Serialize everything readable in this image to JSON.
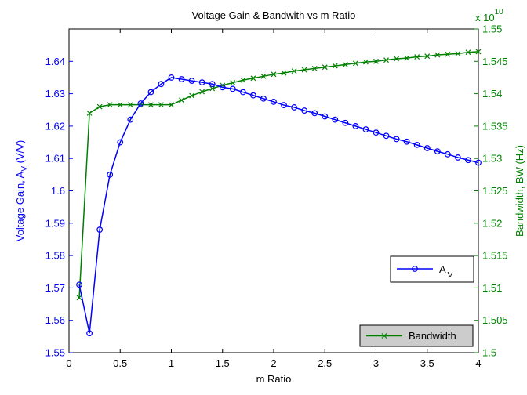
{
  "chart_data": {
    "type": "line",
    "title": "Voltage Gain & Bandwith vs m Ratio",
    "xlabel": "m Ratio",
    "ylabel_left": {
      "text": "Voltage Gain, A",
      "subscript": "V",
      "suffix": " (V/V)"
    },
    "ylabel_right": "Bandwidth, BW (Hz)",
    "right_axis_multiplier": {
      "base": "x 10",
      "exponent": "10"
    },
    "xlim": [
      0,
      4
    ],
    "ylim_left": [
      1.55,
      1.65
    ],
    "ylim_right": [
      1.5,
      1.55
    ],
    "xticks": [
      "0",
      "0.5",
      "1",
      "1.5",
      "2",
      "2.5",
      "3",
      "3.5",
      "4"
    ],
    "yticks_left": [
      "1.55",
      "1.56",
      "1.57",
      "1.58",
      "1.59",
      "1.6",
      "1.61",
      "1.62",
      "1.63",
      "1.64"
    ],
    "yticks_right": [
      "1.5",
      "1.505",
      "1.51",
      "1.515",
      "1.52",
      "1.525",
      "1.53",
      "1.535",
      "1.54",
      "1.545",
      "1.55"
    ],
    "grid": false,
    "colors": {
      "gain": "#0000ff",
      "bandwidth": "#008000",
      "axis": "#000000"
    },
    "series": [
      {
        "name": "A",
        "name_subscript": "V",
        "axis": "left",
        "marker": "circle",
        "x": [
          0.1,
          0.2,
          0.3,
          0.4,
          0.5,
          0.6,
          0.7,
          0.8,
          0.9,
          1.0,
          1.1,
          1.2,
          1.3,
          1.4,
          1.5,
          1.6,
          1.7,
          1.8,
          1.9,
          2.0,
          2.1,
          2.2,
          2.3,
          2.4,
          2.5,
          2.6,
          2.7,
          2.8,
          2.9,
          3.0,
          3.1,
          3.2,
          3.3,
          3.4,
          3.5,
          3.6,
          3.7,
          3.8,
          3.9,
          4.0
        ],
        "values": [
          1.571,
          1.556,
          1.588,
          1.605,
          1.615,
          1.622,
          1.627,
          1.6305,
          1.633,
          1.635,
          1.6345,
          1.634,
          1.6335,
          1.633,
          1.632,
          1.6315,
          1.6305,
          1.6295,
          1.6285,
          1.6275,
          1.6265,
          1.6258,
          1.6248,
          1.624,
          1.623,
          1.622,
          1.621,
          1.62,
          1.619,
          1.618,
          1.617,
          1.616,
          1.6152,
          1.6142,
          1.6132,
          1.6122,
          1.6113,
          1.6103,
          1.6095,
          1.6087
        ]
      },
      {
        "name": "Bandwidth",
        "axis": "right",
        "marker": "x",
        "x": [
          0.1,
          0.2,
          0.3,
          0.4,
          0.5,
          0.6,
          0.7,
          0.8,
          0.9,
          1.0,
          1.1,
          1.2,
          1.3,
          1.4,
          1.5,
          1.6,
          1.7,
          1.8,
          1.9,
          2.0,
          2.1,
          2.2,
          2.3,
          2.4,
          2.5,
          2.6,
          2.7,
          2.8,
          2.9,
          3.0,
          3.1,
          3.2,
          3.3,
          3.4,
          3.5,
          3.6,
          3.7,
          3.8,
          3.9,
          4.0
        ],
        "values": [
          1.5085,
          1.537,
          1.538,
          1.5383,
          1.5383,
          1.5383,
          1.5383,
          1.5383,
          1.5383,
          1.5383,
          1.539,
          1.5397,
          1.5403,
          1.5408,
          1.5413,
          1.5417,
          1.5421,
          1.5424,
          1.5427,
          1.543,
          1.5432,
          1.5435,
          1.5437,
          1.5439,
          1.5441,
          1.5443,
          1.5445,
          1.5447,
          1.5449,
          1.545,
          1.5452,
          1.5454,
          1.5455,
          1.5457,
          1.5458,
          1.546,
          1.5461,
          1.5462,
          1.5464,
          1.5465
        ]
      }
    ]
  }
}
